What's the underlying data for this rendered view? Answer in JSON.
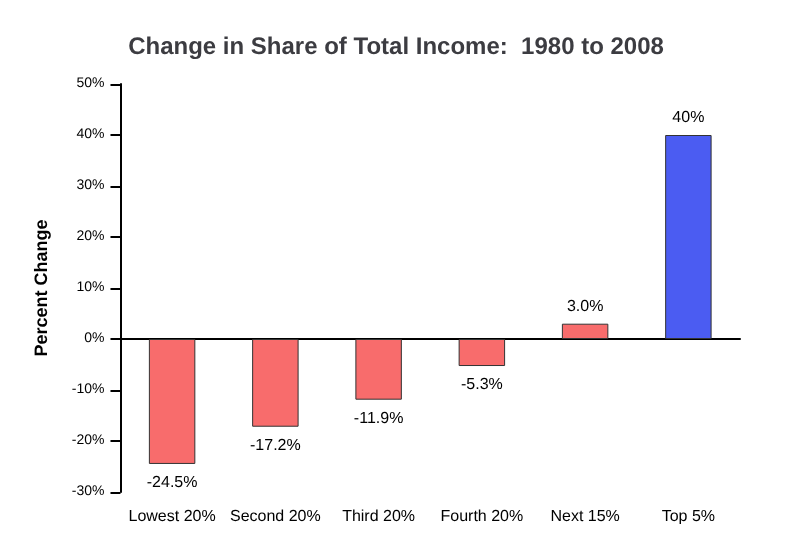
{
  "chart_data": {
    "type": "bar",
    "title": "Change in Share of Total Income:  1980 to 2008",
    "ylabel": "Percent Change",
    "categories": [
      "Lowest 20%",
      "Second 20%",
      "Third 20%",
      "Fourth 20%",
      "Next 15%",
      "Top 5%"
    ],
    "values": [
      -24.5,
      -17.2,
      -11.9,
      -5.3,
      3.0,
      40
    ],
    "colors": [
      "#f86c6c",
      "#f86c6c",
      "#f86c6c",
      "#f86c6c",
      "#f86c6c",
      "#4b5cf2"
    ],
    "value_labels": [
      "-24.5%",
      "-17.2%",
      "-11.9%",
      "-5.3%",
      "3.0%",
      "40%"
    ],
    "ylim": [
      -30,
      50
    ],
    "yticks": [
      {
        "value": -30,
        "label": "-30%"
      },
      {
        "value": -20,
        "label": "-20%"
      },
      {
        "value": -10,
        "label": "-10%"
      },
      {
        "value": 0,
        "label": "0%"
      },
      {
        "value": 10,
        "label": "10%"
      },
      {
        "value": 20,
        "label": "20%"
      },
      {
        "value": 30,
        "label": "30%"
      },
      {
        "value": 40,
        "label": "40%"
      },
      {
        "value": 50,
        "label": "50%"
      }
    ]
  }
}
